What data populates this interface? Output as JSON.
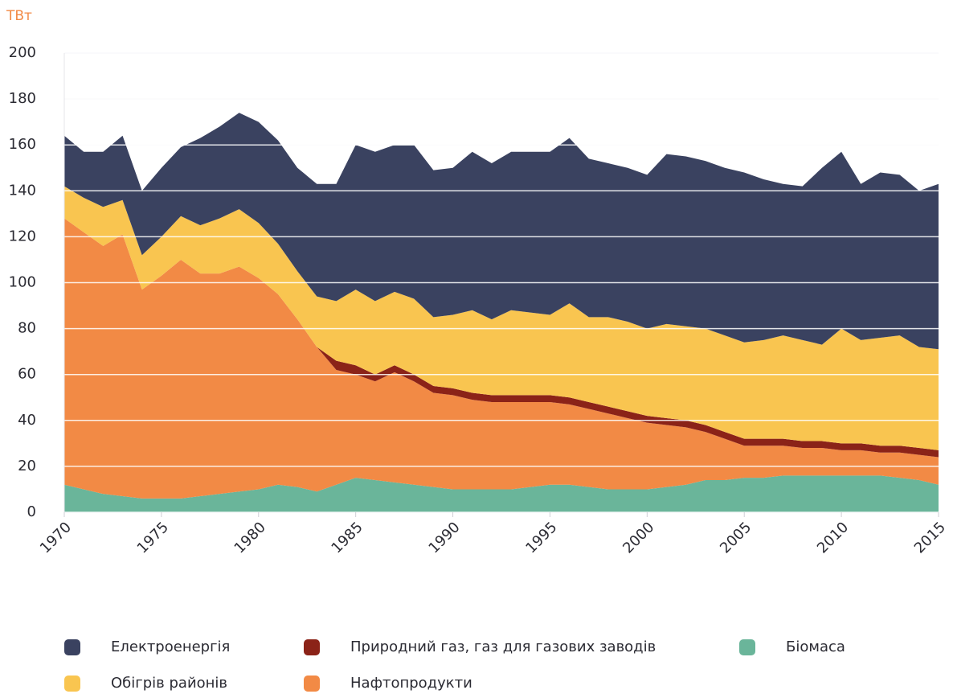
{
  "chart_data": {
    "type": "stacked_area",
    "y_unit": "ТВт",
    "x": [
      1970,
      1971,
      1972,
      1973,
      1974,
      1975,
      1976,
      1977,
      1978,
      1979,
      1980,
      1981,
      1982,
      1983,
      1984,
      1985,
      1986,
      1987,
      1988,
      1989,
      1990,
      1991,
      1992,
      1993,
      1994,
      1995,
      1996,
      1997,
      1998,
      1999,
      2000,
      2001,
      2002,
      2003,
      2004,
      2005,
      2006,
      2007,
      2008,
      2009,
      2010,
      2011,
      2012,
      2013,
      2014,
      2015
    ],
    "series": [
      {
        "name": "Біомаса",
        "color": "#6ab59a",
        "values": [
          12,
          10,
          8,
          7,
          6,
          6,
          6,
          7,
          8,
          9,
          10,
          12,
          11,
          9,
          12,
          15,
          14,
          13,
          12,
          11,
          10,
          10,
          10,
          10,
          11,
          12,
          12,
          11,
          10,
          10,
          10,
          11,
          12,
          14,
          14,
          15,
          15,
          16,
          16,
          16,
          16,
          16,
          16,
          15,
          14,
          12
        ]
      },
      {
        "name": "Нафтопродукти",
        "color": "#f28a45",
        "values": [
          116,
          112,
          108,
          114,
          91,
          97,
          104,
          97,
          96,
          98,
          92,
          83,
          73,
          63,
          50,
          45,
          43,
          48,
          45,
          41,
          41,
          39,
          38,
          38,
          37,
          36,
          35,
          34,
          33,
          31,
          29,
          27,
          25,
          21,
          18,
          14,
          14,
          13,
          12,
          12,
          11,
          11,
          10,
          11,
          11,
          12
        ]
      },
      {
        "name": "Природний газ, газ для газових заводів",
        "color": "#8b2318",
        "values": [
          0,
          0,
          0,
          0,
          0,
          0,
          0,
          0,
          0,
          0,
          0,
          0,
          0,
          0,
          4,
          4,
          3,
          3,
          3,
          3,
          3,
          3,
          3,
          3,
          3,
          3,
          3,
          3,
          3,
          3,
          3,
          3,
          3,
          3,
          3,
          3,
          3,
          3,
          3,
          3,
          3,
          3,
          3,
          3,
          3,
          3
        ]
      },
      {
        "name": "Обігрів районів",
        "color": "#f9c550",
        "values": [
          14,
          15,
          17,
          15,
          15,
          17,
          19,
          21,
          24,
          25,
          24,
          22,
          21,
          22,
          26,
          33,
          32,
          32,
          33,
          30,
          32,
          36,
          33,
          37,
          36,
          35,
          41,
          37,
          39,
          39,
          38,
          41,
          41,
          42,
          42,
          42,
          43,
          45,
          44,
          42,
          50,
          45,
          47,
          48,
          44,
          44
        ]
      },
      {
        "name": "Електроенергія",
        "color": "#3a4260",
        "values": [
          22,
          20,
          24,
          28,
          28,
          30,
          30,
          38,
          40,
          42,
          44,
          45,
          45,
          49,
          51,
          63,
          65,
          64,
          67,
          64,
          64,
          69,
          68,
          69,
          70,
          71,
          72,
          69,
          67,
          67,
          67,
          74,
          74,
          73,
          73,
          74,
          70,
          66,
          67,
          77,
          77,
          68,
          72,
          70,
          68,
          72
        ]
      }
    ],
    "xlim": [
      1970,
      2015
    ],
    "xticks": [
      1970,
      1975,
      1980,
      1985,
      1990,
      1995,
      2000,
      2005,
      2010,
      2015
    ],
    "ylim": [
      0,
      200
    ],
    "yticks": [
      0,
      20,
      40,
      60,
      80,
      100,
      120,
      140,
      160,
      180,
      200
    ],
    "grid": true
  }
}
